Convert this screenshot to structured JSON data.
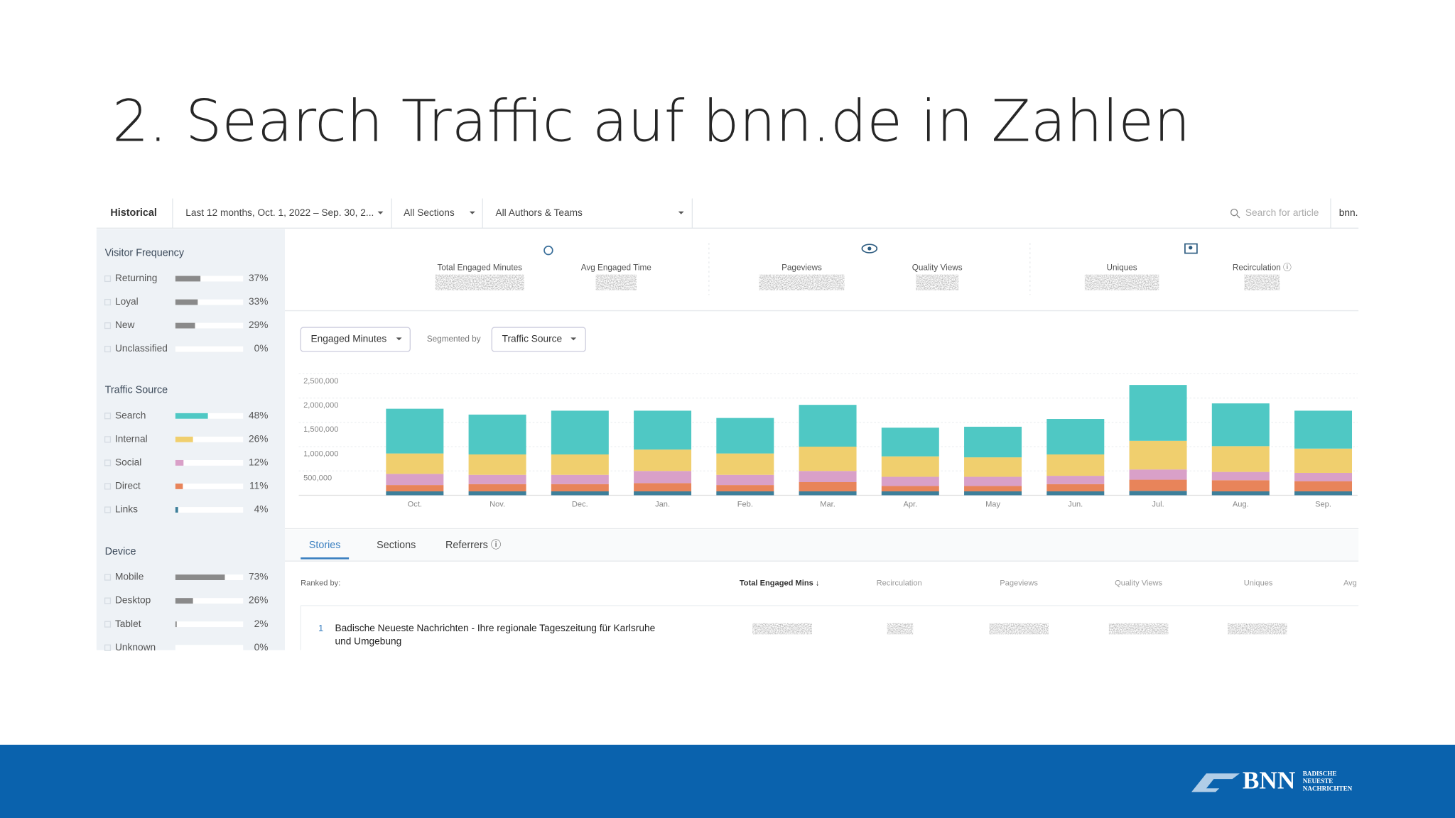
{
  "title": "2. Search Traffic auf bnn.de in Zahlen",
  "toolbar": {
    "mode": "Historical",
    "date": "Last 12 months, Oct. 1, 2022 – Sep. 30, 2...",
    "sections": "All Sections",
    "authors": "All Authors & Teams",
    "search": "Search for article",
    "site": "bnn."
  },
  "sidebar": [
    {
      "title": "Visitor Frequency",
      "labels": [
        "Returning",
        "Loyal",
        "New",
        "Unclassified"
      ],
      "values": [
        37,
        33,
        29,
        0
      ],
      "value_labels": [
        "37%",
        "33%",
        "29%",
        "0%"
      ],
      "colors": [
        "#8a8a8a",
        "#8a8a8a",
        "#8a8a8a",
        "#8a8a8a"
      ]
    },
    {
      "title": "Traffic Source",
      "labels": [
        "Search",
        "Internal",
        "Social",
        "Direct",
        "Links"
      ],
      "values": [
        48,
        26,
        12,
        11,
        4
      ],
      "value_labels": [
        "48%",
        "26%",
        "12%",
        "11%",
        "4%"
      ],
      "colors": [
        "#4fc8c4",
        "#f0cf6e",
        "#d9a0c8",
        "#e8845a",
        "#3d7f9a"
      ]
    },
    {
      "title": "Device",
      "labels": [
        "Mobile",
        "Desktop",
        "Tablet",
        "Unknown"
      ],
      "values": [
        73,
        26,
        2,
        0
      ],
      "value_labels": [
        "73%",
        "26%",
        "2%",
        "0%"
      ],
      "colors": [
        "#8a8a8a",
        "#8a8a8a",
        "#8a8a8a",
        "#8a8a8a"
      ]
    }
  ],
  "metrics": [
    "Total Engaged Minutes",
    "Avg Engaged Time",
    "Pageviews",
    "Quality Views",
    "Uniques",
    "Recirculation ⓘ"
  ],
  "controls": {
    "metric": "Engaged Minutes",
    "segmented_label": "Segmented by",
    "segment": "Traffic Source"
  },
  "chart_data": {
    "type": "stacked_bar",
    "categories": [
      "Oct.",
      "Nov.",
      "Dec.",
      "Jan.",
      "Feb.",
      "Mar.",
      "Apr.",
      "May",
      "Jun.",
      "Jul.",
      "Aug.",
      "Sep."
    ],
    "series": [
      {
        "color": "#3d7f9a",
        "values": [
          80000,
          80000,
          80000,
          80000,
          80000,
          80000,
          80000,
          80000,
          80000,
          90000,
          80000,
          80000
        ]
      },
      {
        "color": "#e8845a",
        "values": [
          130000,
          150000,
          150000,
          170000,
          130000,
          190000,
          110000,
          110000,
          150000,
          230000,
          230000,
          210000
        ]
      },
      {
        "color": "#d9a0c8",
        "values": [
          230000,
          190000,
          190000,
          250000,
          210000,
          230000,
          190000,
          190000,
          170000,
          210000,
          170000,
          170000
        ]
      },
      {
        "color": "#f0cf6e",
        "values": [
          420000,
          420000,
          420000,
          440000,
          440000,
          500000,
          420000,
          400000,
          440000,
          590000,
          530000,
          500000
        ]
      },
      {
        "color": "#4fc8c4",
        "values": [
          920000,
          820000,
          900000,
          800000,
          730000,
          860000,
          590000,
          630000,
          730000,
          1150000,
          880000,
          780000
        ]
      }
    ],
    "ylim": [
      0,
      2500000
    ],
    "yticks": [
      {
        "value": 500000,
        "label": "500,000"
      },
      {
        "value": 1000000,
        "label": "1,000,000"
      },
      {
        "value": 1500000,
        "label": "1,500,000"
      },
      {
        "value": 2000000,
        "label": "2,000,000"
      },
      {
        "value": 2500000,
        "label": "2,500,000"
      }
    ],
    "grid": true
  },
  "tabs": [
    "Stories",
    "Sections",
    "Referrers ⓘ"
  ],
  "table": {
    "ranked_by": "Ranked by:",
    "columns": [
      "Total Engaged Mins ↓",
      "Recirculation",
      "Pageviews",
      "Quality Views",
      "Uniques",
      "Avg"
    ],
    "rows": [
      {
        "rank": "1",
        "title_lines": [
          "Badische Neueste Nachrichten - Ihre regionale Tageszeitung für Karlsruhe",
          "und Umgebung"
        ]
      }
    ]
  },
  "logo": {
    "mark": "BNN",
    "lines": [
      "BADISCHE",
      "NEUESTE",
      "NACHRICHTEN"
    ]
  }
}
